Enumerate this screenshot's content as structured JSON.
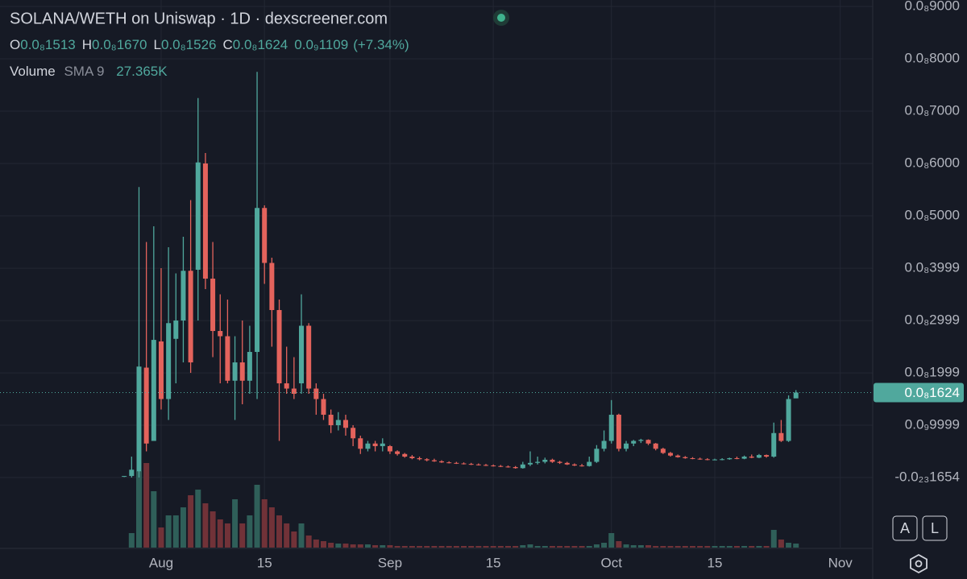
{
  "chart_data": {
    "type": "candlestick",
    "title": "SOLANA/WETH on Uniswap · 1D · dexscreener.com",
    "ohlc": [
      {
        "key": "O",
        "value": "0.0₈1513"
      },
      {
        "key": "H",
        "value": "0.0₈1670"
      },
      {
        "key": "L",
        "value": "0.0₈1526"
      },
      {
        "key": "C",
        "value": "0.0₈1624"
      }
    ],
    "change": "0.0₉1109",
    "change_pct": "(+7.34%)",
    "volume_legend": {
      "label": "Volume",
      "indicator": "SMA 9",
      "value": "27.365K"
    },
    "buttons": [
      "A",
      "L"
    ],
    "x": [
      -5,
      -4,
      -3,
      -2,
      -1,
      0,
      1,
      2,
      3,
      4,
      5,
      6,
      7,
      8,
      9,
      10,
      11,
      12,
      13,
      14,
      15,
      16,
      17,
      18,
      19,
      20,
      21,
      22,
      23,
      24,
      25,
      26,
      27,
      28,
      29,
      30,
      31,
      32,
      33,
      34,
      35,
      36,
      37,
      38,
      39,
      40,
      41,
      42,
      43,
      44,
      45,
      46,
      47,
      48,
      49,
      50,
      51,
      52,
      53,
      54,
      55,
      56,
      57,
      58,
      59,
      60,
      61,
      62,
      63,
      64,
      65,
      66,
      67,
      68,
      69,
      70,
      71,
      72,
      73,
      74,
      75,
      76,
      77,
      78,
      79,
      80,
      81,
      82,
      83,
      84,
      85,
      86
    ],
    "open": [
      2e-11,
      3e-11,
      1.2e-10,
      2.1e-09,
      7e-10,
      2.6e-09,
      1.5e-09,
      2.65e-09,
      3e-09,
      3.95e-09,
      3.97e-09,
      6e-09,
      3.8e-09,
      2.8e-09,
      2.7e-09,
      1.85e-09,
      2.2e-09,
      1.85e-09,
      2.4e-09,
      5.15e-09,
      4.1e-09,
      3.2e-09,
      1.8e-09,
      1.7e-09,
      1.8e-09,
      2.9e-09,
      1.7e-09,
      1.5e-09,
      1.2e-09,
      1e-09,
      1.1e-09,
      9.5e-10,
      7.5e-10,
      5.5e-10,
      6.5e-10,
      6e-10,
      6e-10,
      5e-10,
      4.5e-10,
      4e-10,
      3.7e-10,
      3.5e-10,
      3.3e-10,
      3.1e-10,
      2.9e-10,
      2.8e-10,
      2.7e-10,
      2.6e-10,
      2.5e-10,
      2.4e-10,
      2.3e-10,
      2.2e-10,
      2.1e-10,
      2e-10,
      1.8e-10,
      2.5e-10,
      2.8e-10,
      3e-10,
      3.4e-10,
      3e-10,
      2.8e-10,
      2.5e-10,
      2.3e-10,
      2.2e-10,
      3e-10,
      5.5e-10,
      7e-10,
      1.2e-09,
      5.5e-10,
      6.5e-10,
      7e-10,
      7.2e-10,
      6.5e-10,
      5.5e-10,
      4.7e-10,
      4.2e-10,
      3.9e-10,
      3.7e-10,
      3.6e-10,
      3.5e-10,
      3.4e-10,
      3.45e-10,
      3.5e-10,
      3.7e-10,
      3.6e-10,
      4e-10,
      3.8e-10,
      4.3e-10,
      4e-10,
      8.5e-10,
      7e-10,
      1.513e-09
    ],
    "high": [
      3e-11,
      4e-10,
      5.55e-09,
      4.5e-09,
      4.8e-09,
      4e-09,
      4.4e-09,
      3.9e-09,
      4.6e-09,
      5.3e-09,
      7.25e-09,
      6.2e-09,
      4.5e-09,
      3.5e-09,
      3.4e-09,
      2.7e-09,
      3e-09,
      2.9e-09,
      7.75e-09,
      5.2e-09,
      4.2e-09,
      3.4e-09,
      2.5e-09,
      2.3e-09,
      3.5e-09,
      2.95e-09,
      1.8e-09,
      1.6e-09,
      1.3e-09,
      1.25e-09,
      1.2e-09,
      1e-09,
      8e-10,
      7e-10,
      7e-10,
      7.5e-10,
      6.2e-10,
      5.2e-10,
      4.7e-10,
      4.3e-10,
      4e-10,
      3.7e-10,
      3.6e-10,
      3.3e-10,
      3.1e-10,
      3e-10,
      2.9e-10,
      2.8e-10,
      2.7e-10,
      2.6e-10,
      2.5e-10,
      2.4e-10,
      2.3e-10,
      2.2e-10,
      3e-10,
      5e-10,
      4e-10,
      3.8e-10,
      3.6e-10,
      3.2e-10,
      3e-10,
      2.7e-10,
      2.6e-10,
      4e-10,
      6.2e-10,
      9e-10,
      1.48e-09,
      1.22e-09,
      7e-10,
      7.2e-10,
      7.4e-10,
      7.3e-10,
      6.6e-10,
      5.7e-10,
      4.9e-10,
      4.4e-10,
      4.1e-10,
      3.9e-10,
      3.8e-10,
      3.7e-10,
      3.6e-10,
      3.7e-10,
      3.8e-10,
      4e-10,
      4.2e-10,
      4.4e-10,
      4.5e-10,
      4.4e-10,
      1.05e-09,
      1.1e-09,
      1.57e-09,
      1.67e-09
    ],
    "low": [
      1e-11,
      0,
      0,
      5e-10,
      7e-10,
      1.3e-09,
      1.1e-09,
      1.8e-09,
      2.2e-09,
      2e-09,
      3e-09,
      3.6e-09,
      2.3e-09,
      1.8e-09,
      1.8e-09,
      1.1e-09,
      1.4e-09,
      1.6e-09,
      1.5e-09,
      3.7e-09,
      2.5e-09,
      7e-10,
      1.6e-09,
      1.5e-09,
      1.6e-09,
      1.6e-09,
      1.2e-09,
      1.1e-09,
      8.5e-10,
      9e-10,
      8e-10,
      6e-10,
      4.5e-10,
      5e-10,
      5e-10,
      5e-10,
      4.5e-10,
      4.2e-10,
      3.8e-10,
      3.5e-10,
      3.3e-10,
      3.1e-10,
      3e-10,
      2.8e-10,
      2.7e-10,
      2.6e-10,
      2.5e-10,
      2.4e-10,
      2.3e-10,
      2.2e-10,
      2.1e-10,
      2e-10,
      1.9e-10,
      1.7e-10,
      1.7e-10,
      2.2e-10,
      2.5e-10,
      2.7e-10,
      2.8e-10,
      2.6e-10,
      2.4e-10,
      2.2e-10,
      2.1e-10,
      2.1e-10,
      2.8e-10,
      5e-10,
      6.5e-10,
      5e-10,
      5e-10,
      6e-10,
      6.6e-10,
      6.2e-10,
      5.2e-10,
      4.5e-10,
      4e-10,
      3.8e-10,
      3.6e-10,
      3.5e-10,
      3.4e-10,
      3.3e-10,
      3.3e-10,
      3.3e-10,
      3.4e-10,
      3.5e-10,
      3.5e-10,
      3.7e-10,
      3.7e-10,
      3.8e-10,
      3.8e-10,
      6.8e-10,
      6.8e-10,
      1.526e-09
    ],
    "close": [
      3e-11,
      1.5e-10,
      2.12e-09,
      6.5e-10,
      2.63e-09,
      1.5e-09,
      2.95e-09,
      3e-09,
      3.95e-09,
      2.2e-09,
      6.02e-09,
      3.8e-09,
      2.8e-09,
      2.7e-09,
      1.85e-09,
      2.2e-09,
      1.85e-09,
      2.4e-09,
      5.15e-09,
      4.1e-09,
      3.2e-09,
      1.8e-09,
      1.7e-09,
      1.6e-09,
      2.9e-09,
      1.7e-09,
      1.5e-09,
      1.2e-09,
      1e-09,
      1.1e-09,
      9.5e-10,
      7.5e-10,
      5.5e-10,
      6.5e-10,
      6e-10,
      6.5e-10,
      5e-10,
      4.5e-10,
      4e-10,
      3.7e-10,
      3.5e-10,
      3.3e-10,
      3.1e-10,
      2.9e-10,
      2.8e-10,
      2.7e-10,
      2.6e-10,
      2.5e-10,
      2.4e-10,
      2.3e-10,
      2.2e-10,
      2.1e-10,
      2e-10,
      1.8e-10,
      2.5e-10,
      2.8e-10,
      3e-10,
      3.4e-10,
      3e-10,
      2.8e-10,
      2.5e-10,
      2.3e-10,
      2.2e-10,
      3e-10,
      5.5e-10,
      7e-10,
      1.2e-09,
      5.5e-10,
      6.5e-10,
      7e-10,
      7.2e-10,
      6.5e-10,
      5.5e-10,
      4.7e-10,
      4.2e-10,
      3.9e-10,
      3.7e-10,
      3.6e-10,
      3.5e-10,
      3.4e-10,
      3.45e-10,
      3.5e-10,
      3.7e-10,
      3.6e-10,
      4e-10,
      3.8e-10,
      4.3e-10,
      4e-10,
      8.5e-10,
      7e-10,
      1.5e-09,
      1.624e-09
    ],
    "volume": [
      0,
      90000,
      475000,
      525000,
      350000,
      125000,
      200000,
      200000,
      250000,
      325000,
      360000,
      275000,
      225000,
      175000,
      150000,
      300000,
      150000,
      200000,
      390000,
      300000,
      250000,
      200000,
      150000,
      100000,
      150000,
      75000,
      50000,
      40000,
      30000,
      25000,
      25000,
      20000,
      20000,
      20000,
      15000,
      15000,
      15000,
      10000,
      10000,
      10000,
      10000,
      10000,
      10000,
      10000,
      10000,
      10000,
      10000,
      10000,
      10000,
      10000,
      10000,
      10000,
      10000,
      10000,
      15000,
      20000,
      10000,
      10000,
      10000,
      10000,
      10000,
      10000,
      10000,
      10000,
      20000,
      30000,
      90000,
      40000,
      20000,
      15000,
      15000,
      15000,
      10000,
      10000,
      10000,
      10000,
      10000,
      10000,
      10000,
      10000,
      10000,
      10000,
      10000,
      10000,
      10000,
      10000,
      10000,
      10000,
      110000,
      50000,
      30000,
      25000
    ],
    "xlim": [
      -21.83,
      96.4
    ],
    "xticks": [
      {
        "value": 0,
        "label": "Aug"
      },
      {
        "value": 14,
        "label": "15"
      },
      {
        "value": 31,
        "label": "Sep"
      },
      {
        "value": 45,
        "label": "15"
      },
      {
        "value": 61,
        "label": "Oct"
      },
      {
        "value": 75,
        "label": "15"
      },
      {
        "value": 92,
        "label": "Nov"
      }
    ],
    "ylim": [
      -1.338e-09,
      9.123e-09
    ],
    "yticks": [
      {
        "value": 9e-09,
        "label": "0.0₈9000"
      },
      {
        "value": 8e-09,
        "label": "0.0₈8000"
      },
      {
        "value": 7e-09,
        "label": "0.0₈7000"
      },
      {
        "value": 6e-09,
        "label": "0.0₈6000"
      },
      {
        "value": 5e-09,
        "label": "0.0₈5000"
      },
      {
        "value": 3.999e-09,
        "label": "0.0₈3999"
      },
      {
        "value": 2.999e-09,
        "label": "0.0₈2999"
      },
      {
        "value": 1.999e-09,
        "label": "0.0₈1999"
      },
      {
        "value": 9.999e-10,
        "label": "0.0₉9999"
      },
      {
        "value": -1.654e-24,
        "label": "-0.0₂₃1654"
      }
    ],
    "volume_ylim": [
      0,
      600000
    ],
    "last_price": {
      "value": 1.624e-09,
      "label": "0.0₈1624"
    },
    "grid": true,
    "up_color": "#50a89d",
    "down_color": "#e4635c",
    "volume_up_color": "#2f5f59",
    "volume_down_color": "#713238"
  }
}
